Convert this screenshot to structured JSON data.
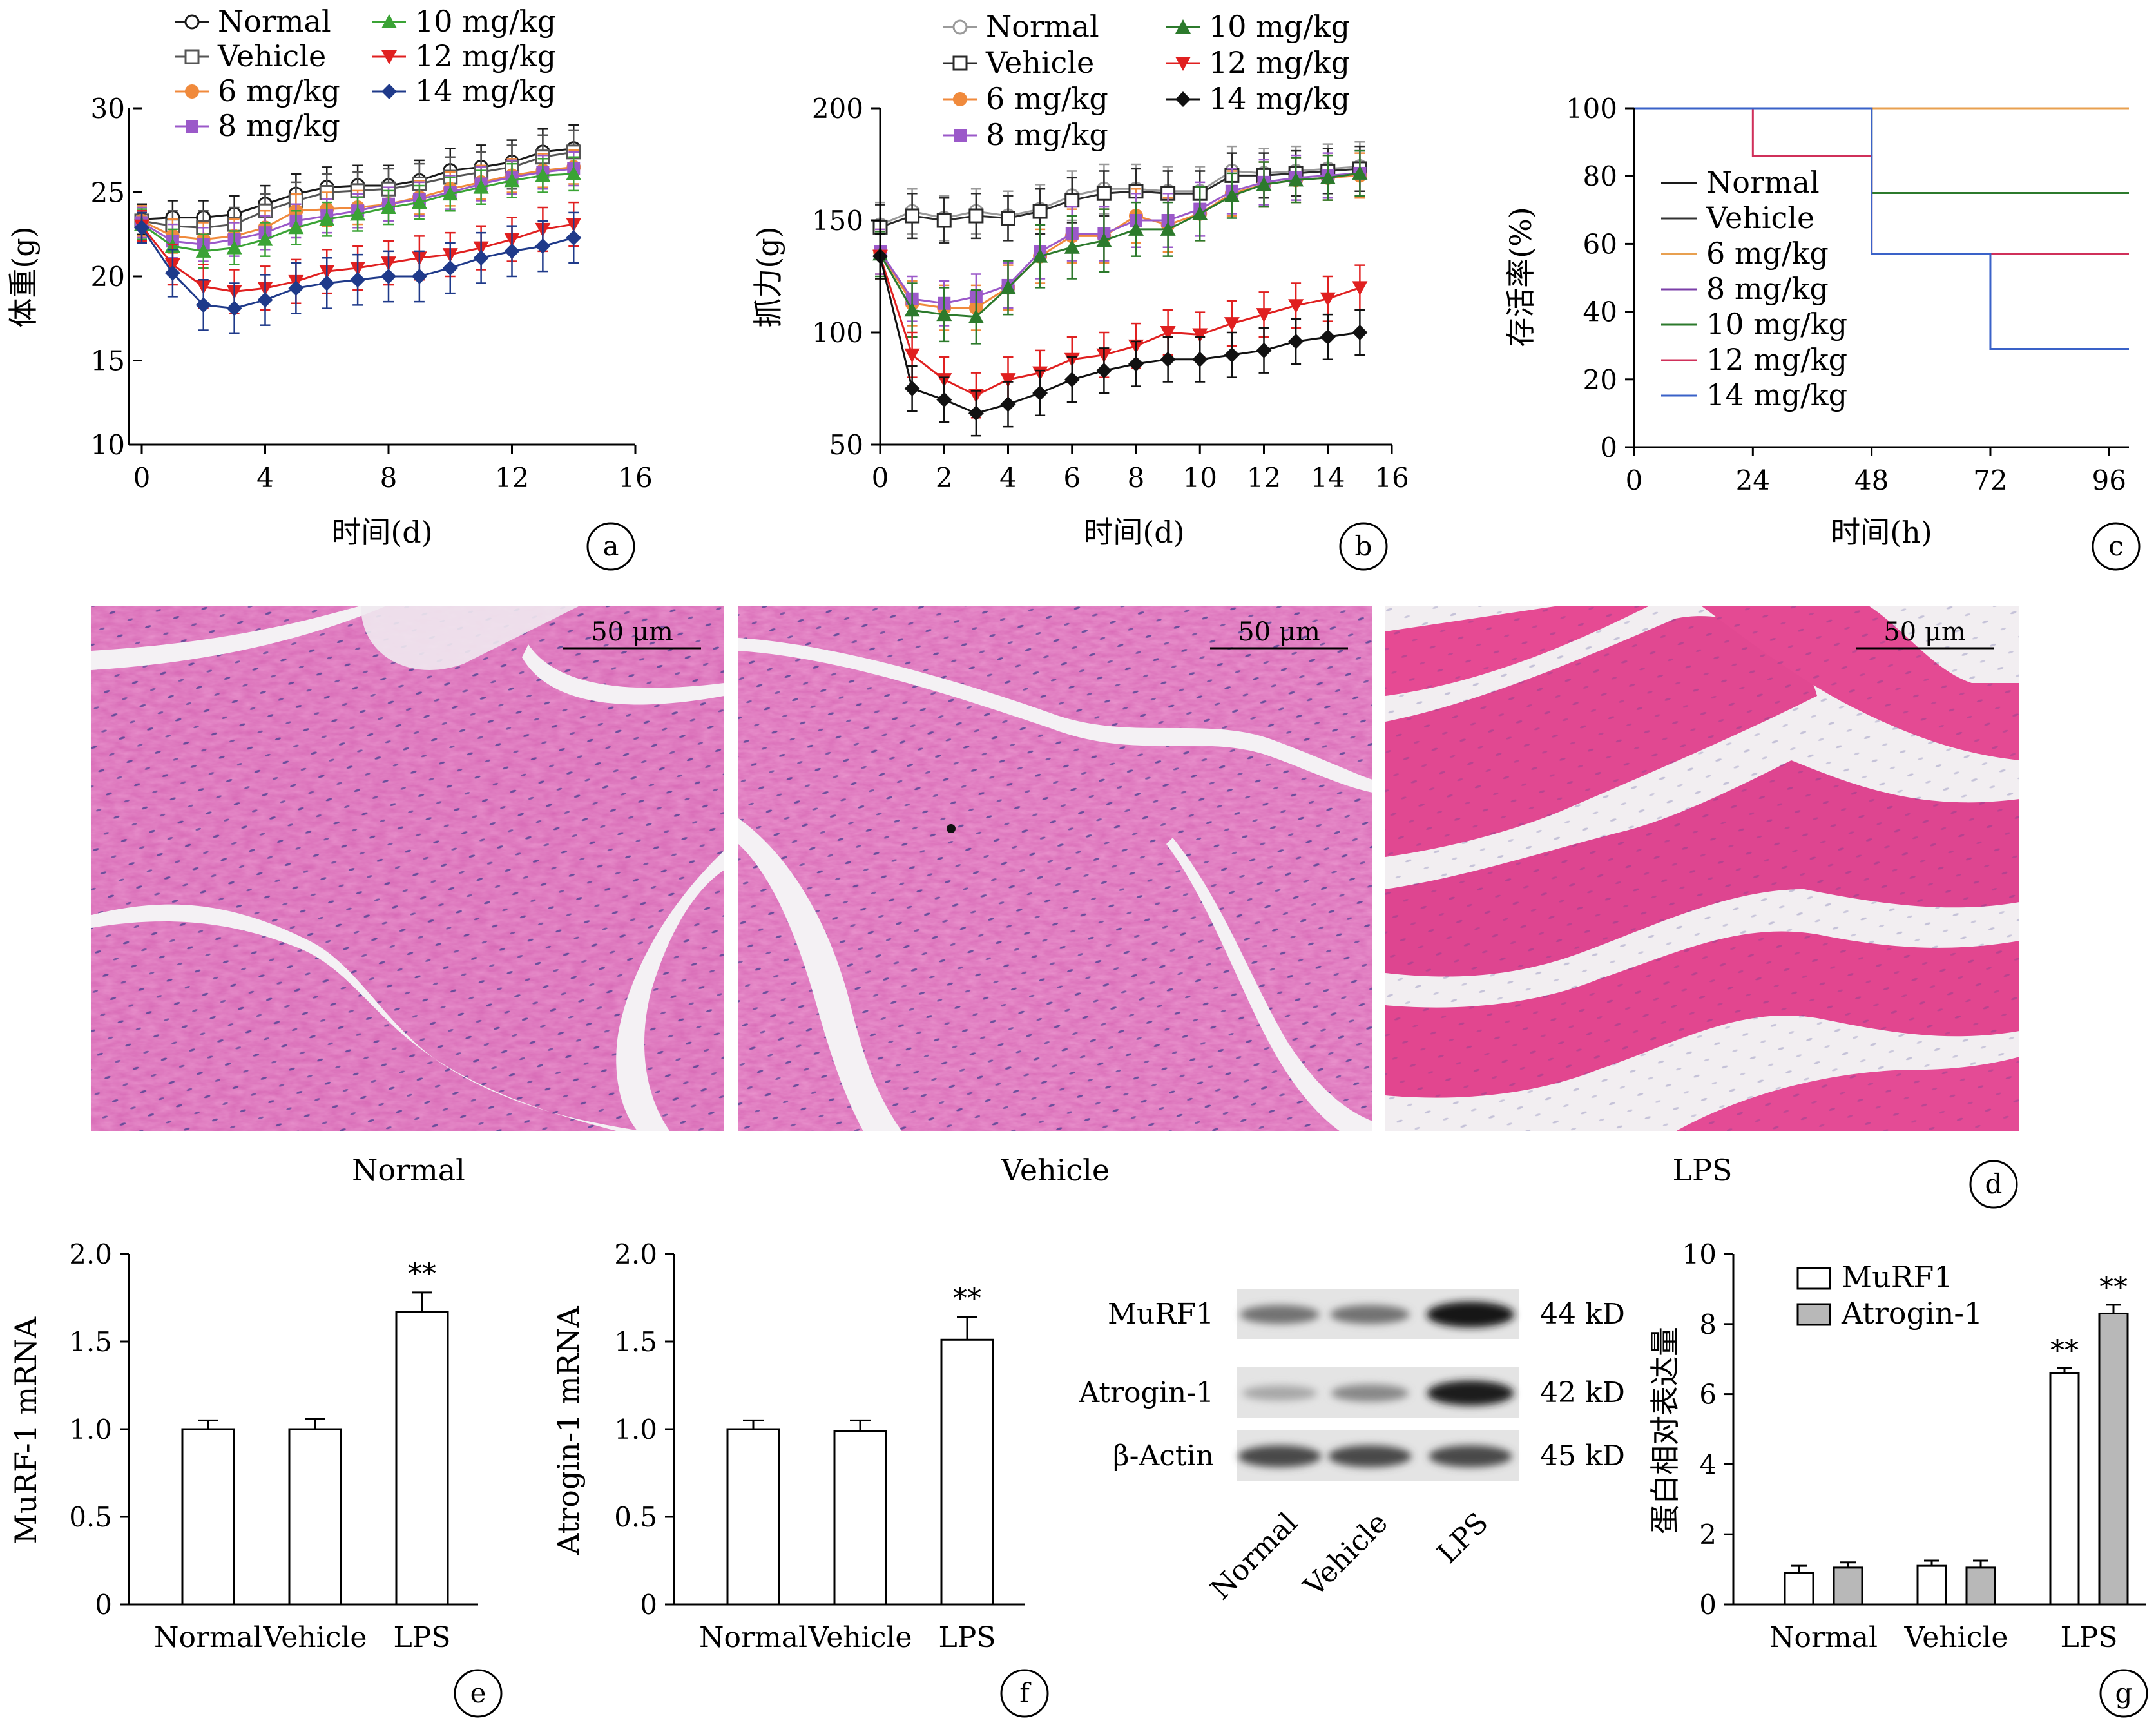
{
  "chart_data": [
    {
      "id": "a",
      "type": "line",
      "panel_label": "a",
      "ylabel": "体重(g)",
      "xlabel": "时间(d)",
      "xlim": [
        0,
        16
      ],
      "ylim": [
        10,
        30
      ],
      "xticks": [
        0,
        4,
        8,
        12,
        16
      ],
      "yticks": [
        10,
        15,
        20,
        25,
        30
      ],
      "x": [
        0,
        1,
        2,
        3,
        4,
        5,
        6,
        7,
        8,
        9,
        10,
        11,
        12,
        13,
        14
      ],
      "series": [
        {
          "name": "Normal",
          "color": "#1a1a1a",
          "marker": "circle-open",
          "values": [
            23.4,
            23.5,
            23.5,
            23.7,
            24.3,
            24.9,
            25.3,
            25.4,
            25.4,
            25.7,
            26.3,
            26.5,
            26.8,
            27.4,
            27.6
          ],
          "err": [
            0.9,
            1.0,
            1.0,
            1.1,
            1.1,
            1.2,
            1.2,
            1.2,
            1.2,
            1.2,
            1.3,
            1.3,
            1.3,
            1.4,
            1.4
          ]
        },
        {
          "name": "Vehicle",
          "color": "#555555",
          "marker": "square-open",
          "values": [
            23.3,
            23.0,
            22.9,
            23.1,
            23.9,
            24.5,
            25.0,
            25.1,
            25.2,
            25.5,
            25.9,
            26.2,
            26.5,
            27.1,
            27.4
          ],
          "err": [
            0.9,
            0.9,
            1.0,
            1.0,
            1.0,
            1.1,
            1.1,
            1.1,
            1.2,
            1.2,
            1.2,
            1.2,
            1.3,
            1.3,
            1.3
          ]
        },
        {
          "name": "6 mg/kg",
          "color": "#f08a3c",
          "marker": "circle",
          "values": [
            23.3,
            22.4,
            22.2,
            22.4,
            22.9,
            23.9,
            24.0,
            24.1,
            24.3,
            24.7,
            25.2,
            25.6,
            26.0,
            26.3,
            26.5
          ],
          "err": [
            0.9,
            1.0,
            1.0,
            1.0,
            1.0,
            1.0,
            1.0,
            1.0,
            1.0,
            1.0,
            1.0,
            1.0,
            1.0,
            1.0,
            1.0
          ]
        },
        {
          "name": "8 mg/kg",
          "color": "#9b59c9",
          "marker": "square",
          "values": [
            23.2,
            22.1,
            21.9,
            22.2,
            22.6,
            23.3,
            23.6,
            23.9,
            24.3,
            24.6,
            25.0,
            25.5,
            25.9,
            26.2,
            26.4
          ],
          "err": [
            0.9,
            1.0,
            1.0,
            1.0,
            1.0,
            1.0,
            1.0,
            1.0,
            1.0,
            1.0,
            1.0,
            1.0,
            1.0,
            1.0,
            1.0
          ]
        },
        {
          "name": "10 mg/kg",
          "color": "#3aa335",
          "marker": "triangle-up",
          "values": [
            23.1,
            21.8,
            21.5,
            21.7,
            22.2,
            22.9,
            23.4,
            23.7,
            24.1,
            24.4,
            24.9,
            25.3,
            25.7,
            26.0,
            26.1
          ],
          "err": [
            0.9,
            1.0,
            1.0,
            1.0,
            1.0,
            1.0,
            1.0,
            1.0,
            1.0,
            1.0,
            1.0,
            1.0,
            1.0,
            1.0,
            1.0
          ]
        },
        {
          "name": "12 mg/kg",
          "color": "#e02020",
          "marker": "triangle-down",
          "values": [
            23.0,
            20.7,
            19.4,
            19.1,
            19.3,
            19.7,
            20.3,
            20.5,
            20.8,
            21.1,
            21.3,
            21.7,
            22.2,
            22.8,
            23.1
          ],
          "err": [
            0.9,
            1.2,
            1.3,
            1.3,
            1.3,
            1.3,
            1.3,
            1.3,
            1.3,
            1.3,
            1.3,
            1.3,
            1.3,
            1.3,
            1.3
          ]
        },
        {
          "name": "14 mg/kg",
          "color": "#1f3a8a",
          "marker": "diamond",
          "values": [
            22.9,
            20.2,
            18.3,
            18.1,
            18.6,
            19.3,
            19.6,
            19.8,
            20.0,
            20.0,
            20.5,
            21.1,
            21.5,
            21.8,
            22.3
          ],
          "err": [
            0.9,
            1.4,
            1.5,
            1.5,
            1.5,
            1.5,
            1.5,
            1.5,
            1.5,
            1.5,
            1.5,
            1.5,
            1.5,
            1.5,
            1.5
          ]
        }
      ]
    },
    {
      "id": "b",
      "type": "line",
      "panel_label": "b",
      "ylabel": "抓力(g)",
      "xlabel": "时间(d)",
      "xlim": [
        0,
        16
      ],
      "ylim": [
        50,
        200
      ],
      "xticks": [
        0,
        2,
        4,
        6,
        8,
        10,
        12,
        14,
        16
      ],
      "yticks": [
        50,
        100,
        150,
        200
      ],
      "x": [
        0,
        1,
        2,
        3,
        4,
        5,
        6,
        7,
        8,
        9,
        10,
        11,
        12,
        13,
        14,
        15
      ],
      "series": [
        {
          "name": "Normal",
          "color": "#9a9a9a",
          "marker": "circle-open",
          "values": [
            148,
            154,
            151,
            154,
            152,
            155,
            161,
            164,
            164,
            163,
            163,
            172,
            171,
            172,
            173,
            174
          ],
          "err": [
            10,
            10,
            10,
            10,
            11,
            11,
            11,
            11,
            11,
            11,
            11,
            11,
            11,
            11,
            11,
            11
          ]
        },
        {
          "name": "Vehicle",
          "color": "#2a2a2a",
          "marker": "square-open",
          "values": [
            147,
            152,
            150,
            152,
            151,
            154,
            159,
            162,
            163,
            162,
            162,
            170,
            170,
            171,
            172,
            173
          ],
          "err": [
            10,
            10,
            10,
            10,
            10,
            10,
            10,
            10,
            10,
            10,
            10,
            10,
            10,
            10,
            10,
            10
          ]
        },
        {
          "name": "6 mg/kg",
          "color": "#f08a3c",
          "marker": "circle",
          "values": [
            136,
            113,
            111,
            111,
            120,
            134,
            143,
            143,
            152,
            148,
            153,
            162,
            166,
            168,
            169,
            170
          ],
          "err": [
            10,
            10,
            10,
            10,
            10,
            12,
            12,
            12,
            12,
            12,
            12,
            10,
            10,
            10,
            10,
            10
          ]
        },
        {
          "name": "8 mg/kg",
          "color": "#9b59c9",
          "marker": "square",
          "values": [
            136,
            115,
            113,
            116,
            121,
            136,
            144,
            144,
            150,
            150,
            155,
            163,
            167,
            169,
            170,
            171
          ],
          "err": [
            10,
            10,
            10,
            10,
            10,
            12,
            12,
            12,
            12,
            12,
            12,
            10,
            10,
            10,
            10,
            10
          ]
        },
        {
          "name": "10 mg/kg",
          "color": "#2c7a2c",
          "marker": "triangle-up",
          "values": [
            135,
            110,
            108,
            107,
            120,
            134,
            138,
            141,
            146,
            146,
            153,
            161,
            166,
            168,
            169,
            171
          ],
          "err": [
            10,
            12,
            12,
            12,
            12,
            14,
            14,
            14,
            12,
            12,
            12,
            10,
            10,
            10,
            10,
            10
          ]
        },
        {
          "name": "12 mg/kg",
          "color": "#e02020",
          "marker": "triangle-down",
          "values": [
            134,
            90,
            79,
            72,
            79,
            82,
            88,
            90,
            94,
            100,
            99,
            104,
            108,
            112,
            115,
            120
          ],
          "err": [
            10,
            10,
            10,
            10,
            10,
            10,
            10,
            10,
            10,
            10,
            10,
            10,
            10,
            10,
            10,
            10
          ]
        },
        {
          "name": "14 mg/kg",
          "color": "#111111",
          "marker": "diamond",
          "values": [
            134,
            75,
            70,
            64,
            68,
            73,
            79,
            83,
            86,
            88,
            88,
            90,
            92,
            96,
            98,
            100
          ],
          "err": [
            10,
            10,
            10,
            10,
            10,
            10,
            10,
            10,
            10,
            10,
            10,
            10,
            10,
            10,
            10,
            10
          ]
        }
      ]
    },
    {
      "id": "c",
      "type": "line",
      "subtype": "step",
      "panel_label": "c",
      "ylabel": "存活率(%)",
      "xlabel": "时间(h)",
      "xlim": [
        0,
        100
      ],
      "ylim": [
        0,
        100
      ],
      "xticks": [
        0,
        24,
        48,
        72,
        96
      ],
      "yticks": [
        0,
        20,
        40,
        60,
        80,
        100
      ],
      "series": [
        {
          "name": "Normal",
          "color": "#1a1a1a",
          "steps": [
            [
              0,
              100
            ],
            [
              100,
              100
            ]
          ]
        },
        {
          "name": "Vehicle",
          "color": "#333333",
          "steps": [
            [
              0,
              100
            ],
            [
              100,
              100
            ]
          ]
        },
        {
          "name": "6 mg/kg",
          "color": "#e8a050",
          "steps": [
            [
              0,
              100
            ],
            [
              100,
              100
            ]
          ]
        },
        {
          "name": "8 mg/kg",
          "color": "#7b3fa8",
          "steps": [
            [
              0,
              100
            ],
            [
              48,
              100
            ],
            [
              48,
              75
            ],
            [
              100,
              75
            ]
          ]
        },
        {
          "name": "10 mg/kg",
          "color": "#2c7a2c",
          "steps": [
            [
              0,
              100
            ],
            [
              48,
              100
            ],
            [
              48,
              75
            ],
            [
              100,
              75
            ]
          ]
        },
        {
          "name": "12 mg/kg",
          "color": "#d0305a",
          "steps": [
            [
              0,
              100
            ],
            [
              24,
              100
            ],
            [
              24,
              86
            ],
            [
              48,
              86
            ],
            [
              48,
              57
            ],
            [
              100,
              57
            ]
          ]
        },
        {
          "name": "14 mg/kg",
          "color": "#3a62c8",
          "steps": [
            [
              0,
              100
            ],
            [
              48,
              100
            ],
            [
              48,
              57
            ],
            [
              72,
              57
            ],
            [
              72,
              29
            ],
            [
              100,
              29
            ]
          ]
        }
      ]
    },
    {
      "id": "e",
      "type": "bar",
      "panel_label": "e",
      "ylabel": "MuRF-1 mRNA",
      "ylim": [
        0,
        2.0
      ],
      "yticks": [
        "0",
        "0.5",
        "1.0",
        "1.5",
        "2.0"
      ],
      "categories": [
        "Normal",
        "Vehicle",
        "LPS"
      ],
      "values": [
        1.0,
        1.0,
        1.67
      ],
      "err": [
        0.05,
        0.06,
        0.11
      ],
      "annotations": [
        "",
        "",
        "**"
      ]
    },
    {
      "id": "f",
      "type": "bar",
      "panel_label": "f",
      "ylabel": "Atrogin-1 mRNA",
      "ylim": [
        0,
        2.0
      ],
      "yticks": [
        "0",
        "0.5",
        "1.0",
        "1.5",
        "2.0"
      ],
      "categories": [
        "Normal",
        "Vehicle",
        "LPS"
      ],
      "values": [
        1.0,
        0.99,
        1.51
      ],
      "err": [
        0.05,
        0.06,
        0.13
      ],
      "annotations": [
        "",
        "",
        "**"
      ]
    },
    {
      "id": "g",
      "type": "bar",
      "panel_label": "g",
      "ylabel": "蛋白相对表达量",
      "ylim": [
        0,
        10
      ],
      "yticks": [
        "0",
        "2",
        "4",
        "6",
        "8",
        "10"
      ],
      "categories": [
        "Normal",
        "Vehicle",
        "LPS"
      ],
      "series": [
        {
          "name": "MuRF1",
          "color": "#ffffff",
          "values": [
            0.9,
            1.1,
            6.6
          ],
          "err": [
            0.2,
            0.15,
            0.15
          ],
          "annotations": [
            "",
            "",
            "**"
          ]
        },
        {
          "name": "Atrogin-1",
          "color": "#b8b8b8",
          "values": [
            1.05,
            1.05,
            8.3
          ],
          "err": [
            0.15,
            0.2,
            0.25
          ],
          "annotations": [
            "",
            "",
            "**"
          ]
        }
      ]
    }
  ],
  "histology": {
    "panel_label": "d",
    "scale_bar": "50 μm",
    "labels": [
      "Normal",
      "Vehicle",
      "LPS"
    ]
  },
  "western_blot": {
    "proteins": [
      "MuRF1",
      "Atrogin-1",
      "β-Actin"
    ],
    "sizes": [
      "44 kD",
      "42 kD",
      "45 kD"
    ],
    "lanes": [
      "Normal",
      "Vehicle",
      "LPS"
    ],
    "band_intensity": [
      [
        0.55,
        0.55,
        1.0
      ],
      [
        0.3,
        0.45,
        0.95
      ],
      [
        0.75,
        0.75,
        0.75
      ]
    ]
  }
}
